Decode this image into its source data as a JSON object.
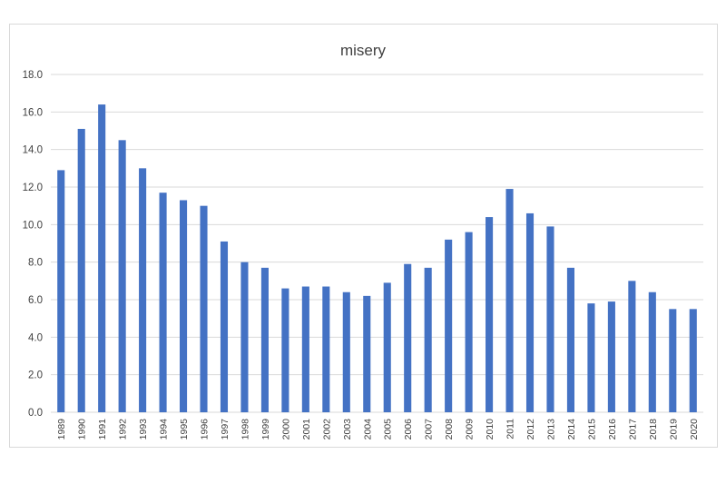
{
  "chart_data": {
    "type": "bar",
    "title": "misery",
    "xlabel": "",
    "ylabel": "",
    "ylim": [
      0,
      18
    ],
    "yticks": [
      "0.0",
      "2.0",
      "4.0",
      "6.0",
      "8.0",
      "10.0",
      "12.0",
      "14.0",
      "16.0",
      "18.0"
    ],
    "grid": true,
    "legend": "none",
    "bar_color": "#4472C4",
    "categories": [
      "1989",
      "1990",
      "1991",
      "1992",
      "1993",
      "1994",
      "1995",
      "1996",
      "1997",
      "1998",
      "1999",
      "2000",
      "2001",
      "2002",
      "2003",
      "2004",
      "2005",
      "2006",
      "2007",
      "2008",
      "2009",
      "2010",
      "2011",
      "2012",
      "2013",
      "2014",
      "2015",
      "2016",
      "2017",
      "2018",
      "2019",
      "2020"
    ],
    "values": [
      12.9,
      15.1,
      16.4,
      14.5,
      13.0,
      11.7,
      11.3,
      11.0,
      9.1,
      8.0,
      7.7,
      6.6,
      6.7,
      6.7,
      6.4,
      6.2,
      6.9,
      7.9,
      7.7,
      9.2,
      9.6,
      10.4,
      11.9,
      10.6,
      9.9,
      7.7,
      5.8,
      5.9,
      7.0,
      6.4,
      5.5,
      5.5
    ]
  }
}
